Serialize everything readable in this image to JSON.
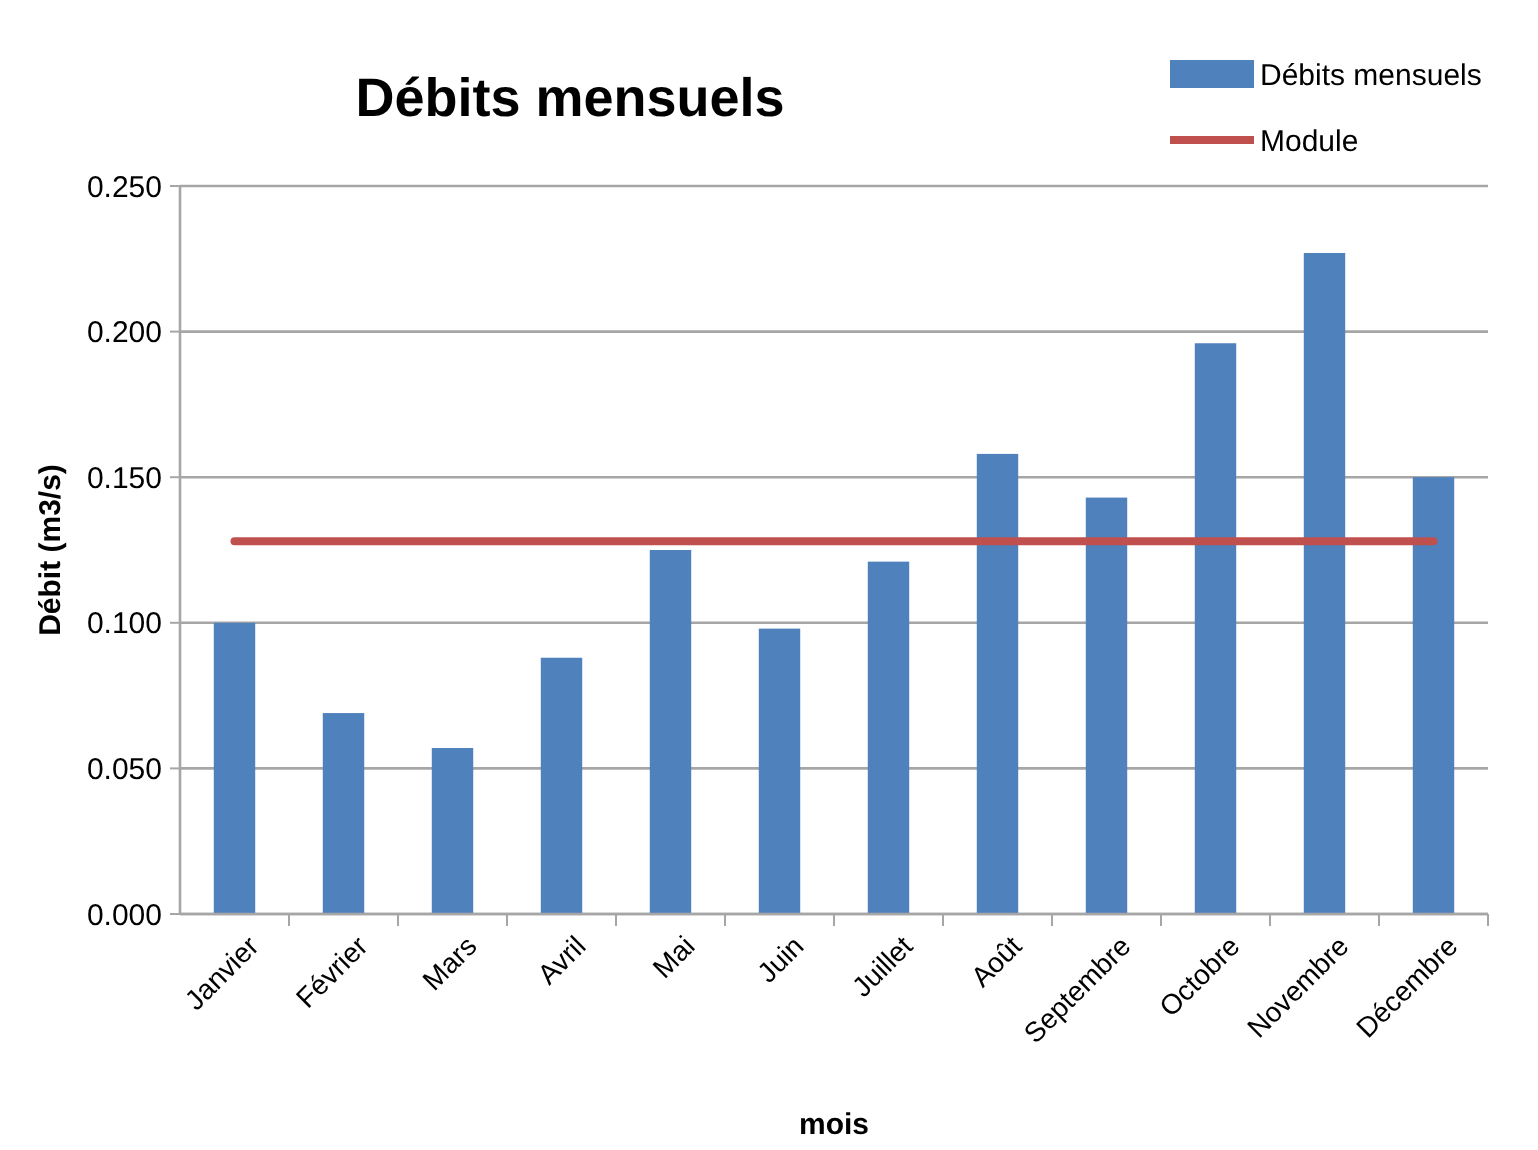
{
  "chart_data": {
    "type": "bar",
    "title": "Débits mensuels",
    "xlabel": "mois",
    "ylabel": "Débit (m3/s)",
    "categories": [
      "Janvier",
      "Février",
      "Mars",
      "Avril",
      "Mai",
      "Juin",
      "Juillet",
      "Août",
      "Septembre",
      "Octobre",
      "Novembre",
      "Décembre"
    ],
    "series": [
      {
        "name": "Débits mensuels",
        "color": "#4f81bd",
        "values": [
          0.1,
          0.069,
          0.057,
          0.088,
          0.125,
          0.098,
          0.121,
          0.158,
          0.143,
          0.196,
          0.227,
          0.15
        ]
      },
      {
        "name": "Module",
        "type": "line",
        "color": "#c0504d",
        "values": [
          0.128,
          0.128,
          0.128,
          0.128,
          0.128,
          0.128,
          0.128,
          0.128,
          0.128,
          0.128,
          0.128,
          0.128
        ]
      }
    ],
    "ylim": [
      0,
      0.25
    ],
    "yticks": [
      {
        "value": 0,
        "label": "0.000"
      },
      {
        "value": 0.05,
        "label": "0.050"
      },
      {
        "value": 0.1,
        "label": "0.100"
      },
      {
        "value": 0.15,
        "label": "0.150"
      },
      {
        "value": 0.2,
        "label": "0.200"
      },
      {
        "value": 0.25,
        "label": "0.250"
      }
    ],
    "grid": "y",
    "legend": "top right",
    "marker": "none"
  }
}
